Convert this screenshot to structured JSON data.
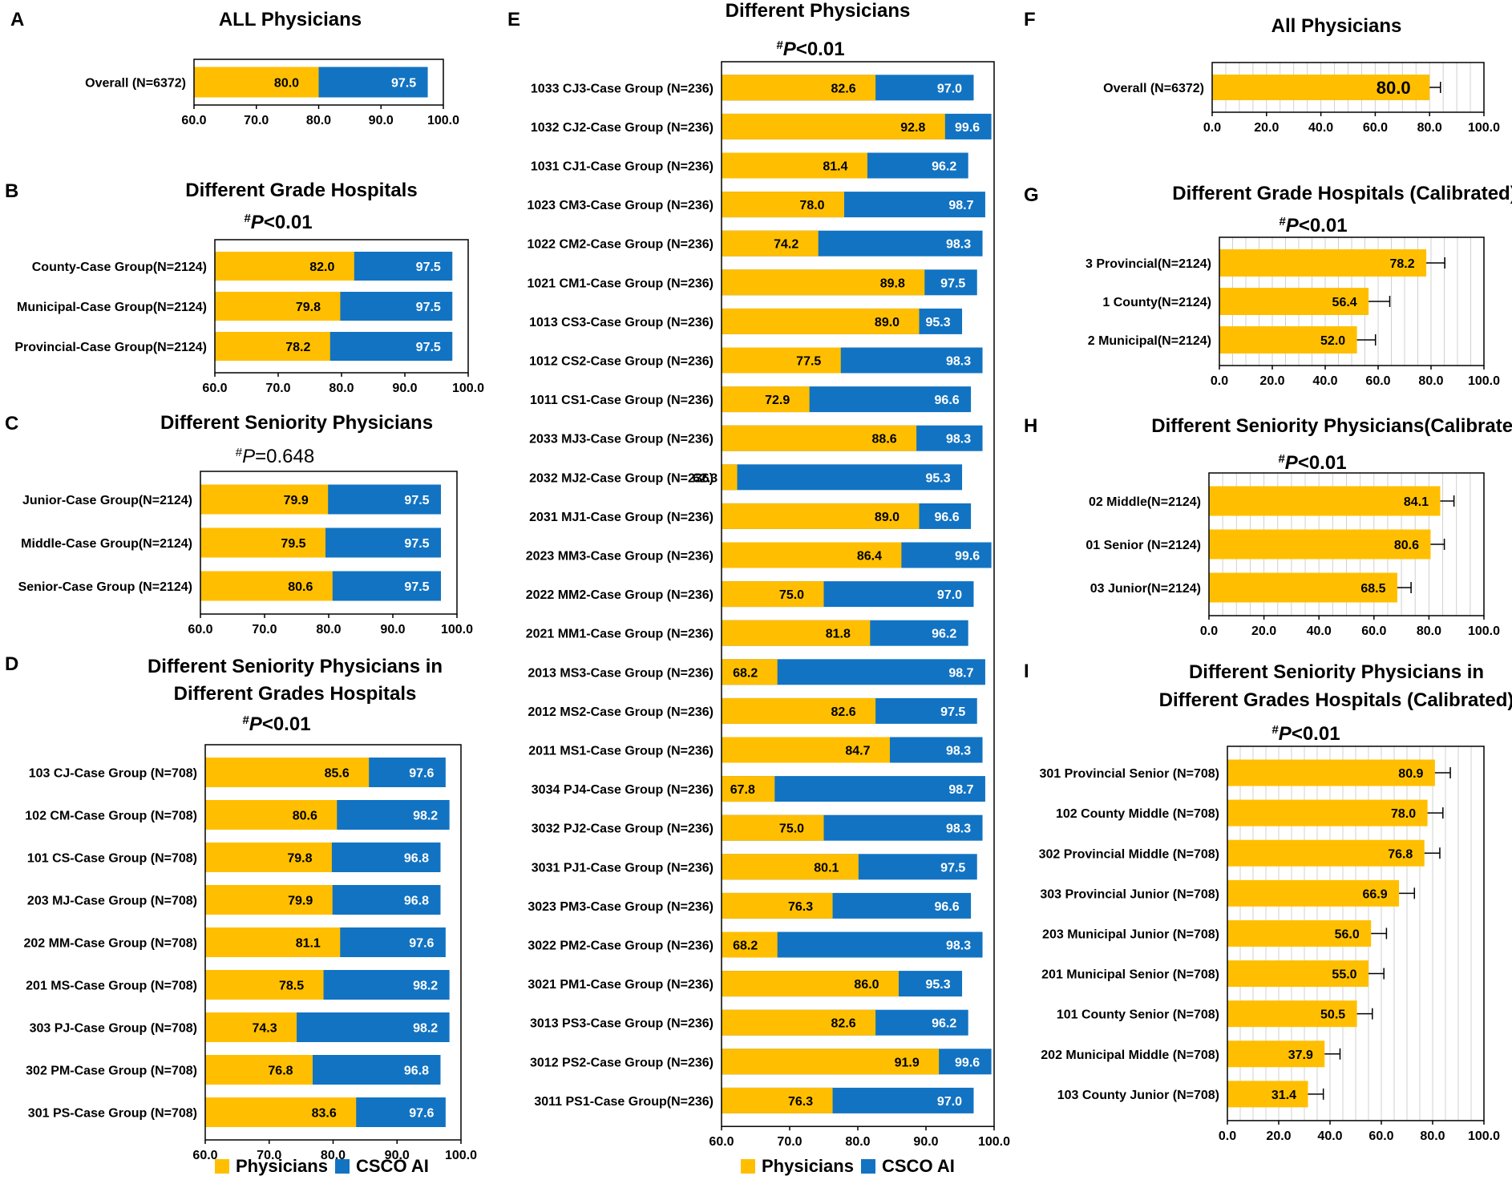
{
  "colors": {
    "physicians": "#FFBF00",
    "ai": "#1273C2",
    "grid": "#D0D0D0",
    "axis": "#000000"
  },
  "legend": {
    "physicians": "Physicians",
    "ai": "CSCO AI"
  },
  "chart_data": [
    {
      "panel": "A",
      "type": "bar",
      "orientation": "horizontal",
      "overlay": true,
      "title": "ALL Physicians",
      "pvalue": null,
      "categories": [
        "Overall (N=6372)"
      ],
      "series": [
        {
          "name": "Physicians",
          "values": [
            80.0
          ]
        },
        {
          "name": "CSCO AI",
          "values": [
            97.5
          ]
        }
      ],
      "xlim": [
        60,
        100
      ],
      "xticks": [
        "60.0",
        "70.0",
        "80.0",
        "90.0",
        "100.0"
      ]
    },
    {
      "panel": "B",
      "type": "bar",
      "orientation": "horizontal",
      "overlay": true,
      "title": "Different Grade Hospitals",
      "pvalue": "<0.01",
      "categories": [
        "County-Case Group(N=2124)",
        "Municipal-Case Group(N=2124)",
        "Provincial-Case Group(N=2124)"
      ],
      "series": [
        {
          "name": "Physicians",
          "values": [
            82.0,
            79.8,
            78.2
          ]
        },
        {
          "name": "CSCO AI",
          "values": [
            97.5,
            97.5,
            97.5
          ]
        }
      ],
      "xlim": [
        60,
        100
      ],
      "xticks": [
        "60.0",
        "70.0",
        "80.0",
        "90.0",
        "100.0"
      ]
    },
    {
      "panel": "C",
      "type": "bar",
      "orientation": "horizontal",
      "overlay": true,
      "title": "Different Seniority Physicians",
      "pvalue": "=0.648",
      "categories": [
        "Junior-Case Group(N=2124)",
        "Middle-Case Group(N=2124)",
        "Senior-Case Group (N=2124)"
      ],
      "series": [
        {
          "name": "Physicians",
          "values": [
            79.9,
            79.5,
            80.6
          ]
        },
        {
          "name": "CSCO AI",
          "values": [
            97.5,
            97.5,
            97.5
          ]
        }
      ],
      "xlim": [
        60,
        100
      ],
      "xticks": [
        "60.0",
        "70.0",
        "80.0",
        "90.0",
        "100.0"
      ]
    },
    {
      "panel": "D",
      "type": "bar",
      "orientation": "horizontal",
      "overlay": true,
      "title": "Different Seniority Physicians in",
      "title2": "Different Grades Hospitals",
      "pvalue": "<0.01",
      "categories": [
        "103 CJ-Case Group (N=708)",
        "102 CM-Case Group (N=708)",
        "101 CS-Case Group (N=708)",
        "203 MJ-Case Group (N=708)",
        "202 MM-Case Group (N=708)",
        "201 MS-Case Group (N=708)",
        "303 PJ-Case Group (N=708)",
        "302 PM-Case Group (N=708)",
        "301 PS-Case Group (N=708)"
      ],
      "series": [
        {
          "name": "Physicians",
          "values": [
            85.6,
            80.6,
            79.8,
            79.9,
            81.1,
            78.5,
            74.3,
            76.8,
            83.6
          ]
        },
        {
          "name": "CSCO AI",
          "values": [
            97.6,
            98.2,
            96.8,
            96.8,
            97.6,
            98.2,
            98.2,
            96.8,
            97.6
          ]
        }
      ],
      "xlim": [
        60,
        100
      ],
      "xticks": [
        "60.0",
        "70.0",
        "80.0",
        "90.0",
        "100.0"
      ]
    },
    {
      "panel": "E",
      "type": "bar",
      "orientation": "horizontal",
      "overlay": true,
      "title": "Different Physicians",
      "pvalue": "<0.01",
      "categories": [
        "1033 CJ3-Case Group (N=236)",
        "1032 CJ2-Case Group (N=236)",
        "1031 CJ1-Case Group (N=236)",
        "1023 CM3-Case Group (N=236)",
        "1022 CM2-Case Group (N=236)",
        "1021 CM1-Case Group (N=236)",
        "1013 CS3-Case Group (N=236)",
        "1012 CS2-Case Group (N=236)",
        "1011 CS1-Case Group (N=236)",
        "2033 MJ3-Case Group (N=236)",
        "2032 MJ2-Case Group (N=236)",
        "2031 MJ1-Case Group (N=236)",
        "2023 MM3-Case Group (N=236)",
        "2022 MM2-Case Group (N=236)",
        "2021 MM1-Case Group (N=236)",
        "2013  MS3-Case Group (N=236)",
        "2012  MS2-Case Group (N=236)",
        "2011 MS1-Case Group (N=236)",
        "3034 PJ4-Case Group (N=236)",
        "3032 PJ2-Case Group (N=236)",
        "3031 PJ1-Case Group (N=236)",
        "3023 PM3-Case Group (N=236)",
        "3022 PM2-Case Group (N=236)",
        "3021 PM1-Case Group (N=236)",
        "3013 PS3-Case Group (N=236)",
        "3012 PS2-Case Group (N=236)",
        "3011 PS1-Case Group(N=236)"
      ],
      "series": [
        {
          "name": "Physicians",
          "values": [
            82.6,
            92.8,
            81.4,
            78.0,
            74.2,
            89.8,
            89.0,
            77.5,
            72.9,
            88.6,
            62.3,
            89.0,
            86.4,
            75.0,
            81.8,
            68.2,
            82.6,
            84.7,
            67.8,
            75.0,
            80.1,
            76.3,
            68.2,
            86.0,
            82.6,
            91.9,
            76.3
          ]
        },
        {
          "name": "CSCO AI",
          "values": [
            97.0,
            99.6,
            96.2,
            98.7,
            98.3,
            97.5,
            95.3,
            98.3,
            96.6,
            98.3,
            95.3,
            96.6,
            99.6,
            97.0,
            96.2,
            98.7,
            97.5,
            98.3,
            98.7,
            98.3,
            97.5,
            96.6,
            98.3,
            95.3,
            96.2,
            99.6,
            97.0
          ]
        }
      ],
      "xlim": [
        60,
        100
      ],
      "xticks": [
        "60.0",
        "70.0",
        "80.0",
        "90.0",
        "100.0"
      ]
    },
    {
      "panel": "F",
      "type": "bar",
      "orientation": "horizontal",
      "overlay": false,
      "error_bars": true,
      "title": "All Physicians",
      "pvalue": null,
      "categories": [
        "Overall (N=6372)"
      ],
      "series": [
        {
          "name": "Physicians",
          "values": [
            80.0
          ],
          "errors": [
            4
          ]
        }
      ],
      "xlim": [
        0,
        100
      ],
      "xticks": [
        "0.0",
        "20.0",
        "40.0",
        "60.0",
        "80.0",
        "100.0"
      ]
    },
    {
      "panel": "G",
      "type": "bar",
      "orientation": "horizontal",
      "overlay": false,
      "error_bars": true,
      "title": "Different Grade Hospitals (Calibrated)",
      "pvalue": "<0.01",
      "categories": [
        "3 Provincial(N=2124)",
        "1 County(N=2124)",
        "2 Municipal(N=2124)"
      ],
      "series": [
        {
          "name": "Physicians",
          "values": [
            78.2,
            56.4,
            52.0
          ],
          "errors": [
            7,
            8,
            7
          ]
        }
      ],
      "xlim": [
        0,
        100
      ],
      "xticks": [
        "0.0",
        "20.0",
        "40.0",
        "60.0",
        "80.0",
        "100.0"
      ]
    },
    {
      "panel": "H",
      "type": "bar",
      "orientation": "horizontal",
      "overlay": false,
      "error_bars": true,
      "title": "Different Seniority Physicians(Calibrated)",
      "pvalue": "<0.01",
      "categories": [
        "02 Middle(N=2124)",
        "01 Senior (N=2124)",
        "03 Junior(N=2124)"
      ],
      "series": [
        {
          "name": "Physicians",
          "values": [
            84.1,
            80.6,
            68.5
          ],
          "errors": [
            5,
            5,
            5
          ]
        }
      ],
      "xlim": [
        0,
        100
      ],
      "xticks": [
        "0.0",
        "20.0",
        "40.0",
        "60.0",
        "80.0",
        "100.0"
      ]
    },
    {
      "panel": "I",
      "type": "bar",
      "orientation": "horizontal",
      "overlay": false,
      "error_bars": true,
      "title": "Different Seniority Physicians in",
      "title2": "Different Grades Hospitals (Calibrated)",
      "pvalue": "<0.01",
      "categories": [
        "301 Provincial Senior (N=708)",
        "102 County Middle (N=708)",
        "302 Provincial Middle (N=708)",
        "303 Provincial Junior (N=708)",
        "203 Municipal Junior (N=708)",
        "201 Municipal Senior (N=708)",
        "101 County Senior (N=708)",
        "202 Municipal Middle (N=708)",
        "103 County Junior (N=708)"
      ],
      "series": [
        {
          "name": "Physicians",
          "values": [
            80.9,
            78.0,
            76.8,
            66.9,
            56.0,
            55.0,
            50.5,
            37.9,
            31.4
          ],
          "errors": [
            6,
            6,
            6,
            6,
            6,
            6,
            6,
            6,
            6
          ]
        }
      ],
      "xlim": [
        0,
        100
      ],
      "xticks": [
        "0.0",
        "20.0",
        "40.0",
        "60.0",
        "80.0",
        "100.0"
      ]
    }
  ]
}
